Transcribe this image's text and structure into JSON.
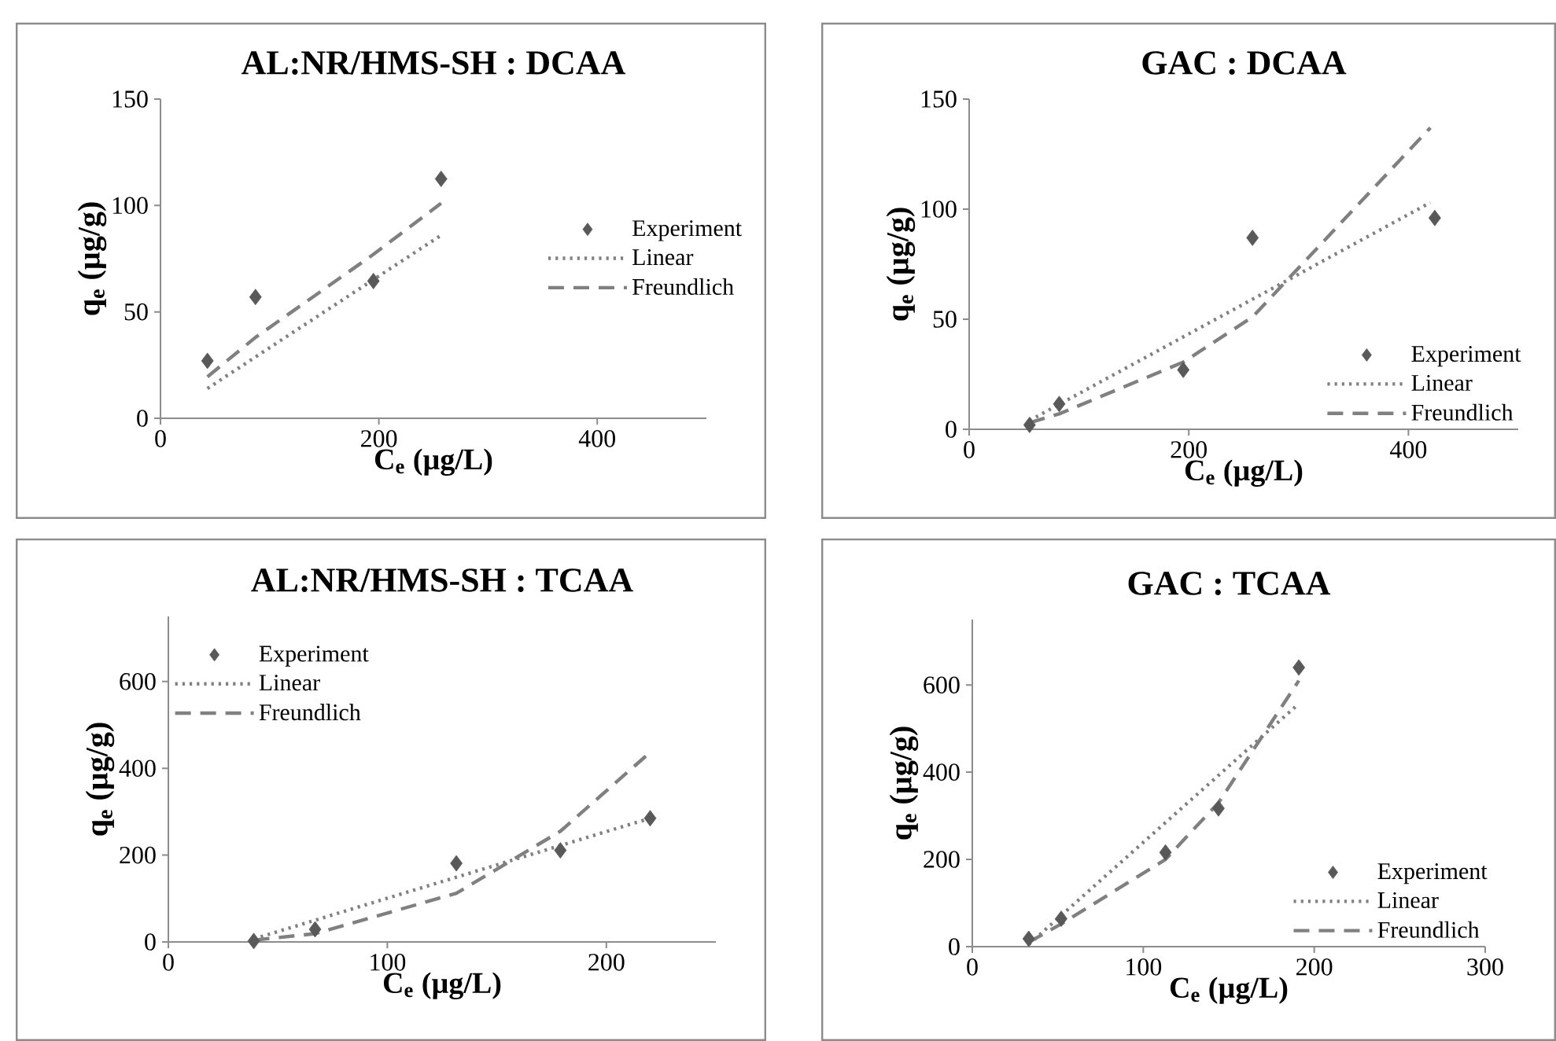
{
  "chart_data": [
    {
      "type": "scatter",
      "title": "AL:NR/HMS-SH : DCAA",
      "xlabel": "C$_{e}$ (µg/L)",
      "ylabel": "q$_{e}$ (µg/g)",
      "xlim": [
        0,
        500
      ],
      "ylim": [
        0,
        150
      ],
      "xticks": [
        0,
        200,
        400
      ],
      "yticks": [
        0,
        50,
        100,
        150
      ],
      "legend": "right",
      "series": [
        {
          "name": "Experiment",
          "type": "scatter",
          "marker": "diamond",
          "color": "#595959",
          "x": [
            43,
            87,
            195,
            257
          ],
          "values": [
            27,
            57,
            64.5,
            112.5
          ]
        },
        {
          "name": "Linear",
          "type": "line",
          "line_style": "dotted",
          "color": "#808080",
          "x": [
            43,
            257
          ],
          "values": [
            14,
            86
          ]
        },
        {
          "name": "Freundlich",
          "type": "line",
          "line_style": "dashed",
          "color": "#808080",
          "x": [
            43,
            87,
            195,
            257
          ],
          "values": [
            19.5,
            38,
            77,
            101
          ]
        }
      ]
    },
    {
      "type": "scatter",
      "title": "GAC : DCAA",
      "xlabel": "C$_{e}$ (µg/L)",
      "ylabel": "q$_{e}$ (µg/g)",
      "xlim": [
        0,
        500
      ],
      "ylim": [
        0,
        150
      ],
      "xticks": [
        0,
        200,
        400
      ],
      "yticks": [
        0,
        50,
        100,
        150
      ],
      "legend": "bottom right",
      "series": [
        {
          "name": "Experiment",
          "type": "scatter",
          "marker": "diamond",
          "color": "#595959",
          "x": [
            55,
            82,
            195,
            258,
            424
          ],
          "values": [
            2,
            11.5,
            27,
            87,
            96
          ]
        },
        {
          "name": "Linear",
          "type": "line",
          "line_style": "dotted",
          "color": "#808080",
          "x": [
            55,
            420
          ],
          "values": [
            4,
            103
          ]
        },
        {
          "name": "Freundlich",
          "type": "line",
          "line_style": "dashed",
          "color": "#808080",
          "x": [
            55,
            82,
            195,
            258,
            420
          ],
          "values": [
            3,
            7,
            30.5,
            51,
            137
          ]
        }
      ]
    },
    {
      "type": "scatter",
      "title": "AL:NR/HMS-SH : TCAA",
      "xlabel": "C$_{e}$ (µg/L)",
      "ylabel": "q$_{e}$ (µg/g)",
      "xlim": [
        0,
        250
      ],
      "ylim": [
        0,
        750
      ],
      "xticks": [
        0,
        100,
        200
      ],
      "yticks": [
        0,
        200,
        400,
        600
      ],
      "legend": "top left",
      "series": [
        {
          "name": "Experiment",
          "type": "scatter",
          "marker": "diamond",
          "color": "#595959",
          "x": [
            39,
            67,
            131.5,
            179,
            220
          ],
          "values": [
            2,
            29,
            181,
            211,
            285
          ]
        },
        {
          "name": "Linear",
          "type": "line",
          "line_style": "dotted",
          "color": "#808080",
          "x": [
            39,
            220
          ],
          "values": [
            7,
            285
          ]
        },
        {
          "name": "Freundlich",
          "type": "line",
          "line_style": "dashed",
          "color": "#808080",
          "x": [
            39,
            67,
            131.5,
            179,
            218
          ],
          "values": [
            4,
            19,
            112,
            255,
            428
          ]
        }
      ]
    },
    {
      "type": "scatter",
      "title": "GAC : TCAA",
      "xlabel": "C$_{e}$ (µg/L)",
      "ylabel": "q$_{e}$ (µg/g)",
      "xlim": [
        0,
        300
      ],
      "ylim": [
        0,
        750
      ],
      "xticks": [
        0,
        100,
        200,
        300
      ],
      "yticks": [
        0,
        200,
        400,
        600
      ],
      "legend": "bottom right",
      "series": [
        {
          "name": "Experiment",
          "type": "scatter",
          "marker": "diamond",
          "color": "#595959",
          "x": [
            33,
            52,
            113,
            144,
            191
          ],
          "values": [
            18,
            64,
            216,
            317,
            640
          ]
        },
        {
          "name": "Linear",
          "type": "line",
          "line_style": "dotted",
          "color": "#808080",
          "x": [
            33,
            189
          ],
          "values": [
            5,
            550
          ]
        },
        {
          "name": "Freundlich",
          "type": "line",
          "line_style": "dashed",
          "color": "#808080",
          "x": [
            33,
            52,
            113,
            144,
            191
          ],
          "values": [
            10,
            52,
            200,
            330,
            610
          ]
        }
      ]
    }
  ]
}
